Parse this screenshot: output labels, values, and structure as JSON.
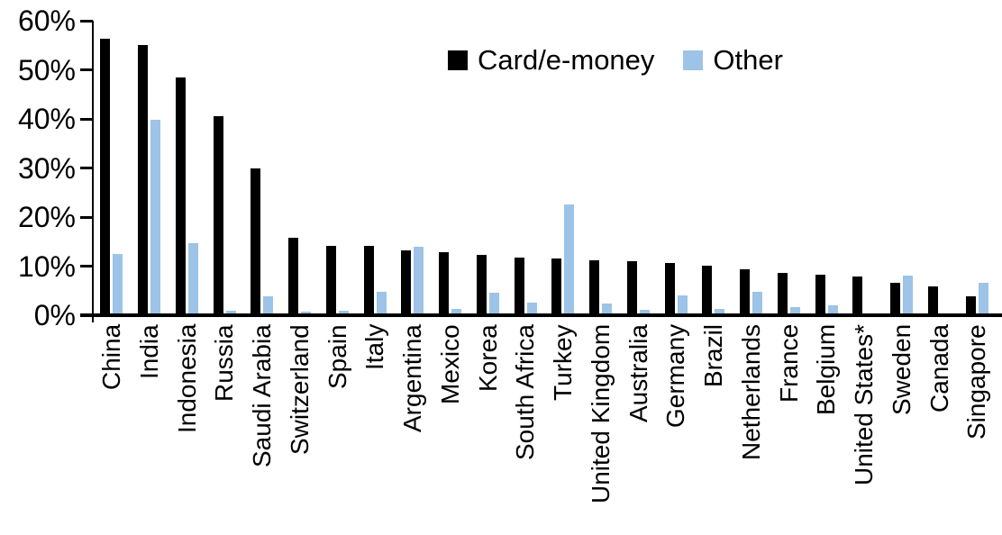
{
  "chart_data": {
    "type": "bar",
    "categories": [
      "China",
      "India",
      "Indonesia",
      "Russia",
      "Saudi Arabia",
      "Switzerland",
      "Spain",
      "Italy",
      "Argentina",
      "Mexico",
      "Korea",
      "South Africa",
      "Turkey",
      "United Kingdom",
      "Australia",
      "Germany",
      "Brazil",
      "Netherlands",
      "France",
      "Belgium",
      "United States*",
      "Sweden",
      "Canada",
      "Singapore"
    ],
    "series": [
      {
        "name": "Card/e-money",
        "color": "#000000",
        "values": [
          56.4,
          55.1,
          48.4,
          40.6,
          30.0,
          15.7,
          14.2,
          14.1,
          13.3,
          12.9,
          12.3,
          11.7,
          11.6,
          11.2,
          11.0,
          10.6,
          10.1,
          9.4,
          8.7,
          8.2,
          7.9,
          6.6,
          5.9,
          3.9
        ]
      },
      {
        "name": "Other",
        "color": "#9DC3E6",
        "values": [
          12.4,
          39.8,
          14.7,
          1.0,
          3.9,
          0.8,
          1.0,
          4.7,
          13.9,
          1.3,
          4.6,
          2.5,
          22.6,
          2.4,
          1.1,
          4.0,
          1.3,
          4.8,
          1.6,
          2.0,
          0.3,
          8.0,
          0.0,
          6.6
        ]
      }
    ],
    "xlabel": "",
    "ylabel": "",
    "ylim": [
      0,
      60
    ],
    "y_tick_labels": [
      "0%",
      "10%",
      "20%",
      "30%",
      "40%",
      "50%",
      "60%"
    ],
    "grid": false,
    "legend_position": "top-center",
    "x_label_rotation_degrees": 90
  }
}
